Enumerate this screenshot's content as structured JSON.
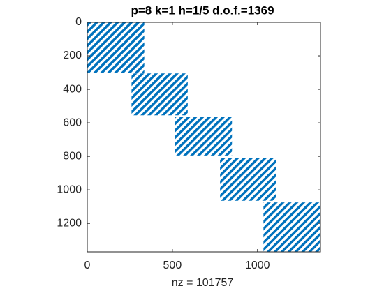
{
  "chart_data": {
    "type": "spy",
    "title": "p=8 k=1 h=1/5 d.o.f.=1369",
    "xlabel": "nz = 101757",
    "color": "#0072bd",
    "xlim": [
      0,
      1370
    ],
    "ylim": [
      0,
      1370
    ],
    "xticks": [
      0,
      500,
      1000
    ],
    "yticks": [
      0,
      200,
      400,
      600,
      800,
      1000,
      1200
    ],
    "blocks": [
      {
        "rows": [
          0,
          300
        ],
        "cols": [
          0,
          335
        ]
      },
      {
        "rows": [
          305,
          555
        ],
        "cols": [
          260,
          590
        ]
      },
      {
        "rows": [
          565,
          795
        ],
        "cols": [
          515,
          850
        ]
      },
      {
        "rows": [
          810,
          1065
        ],
        "cols": [
          780,
          1110
        ]
      },
      {
        "rows": [
          1075,
          1369
        ],
        "cols": [
          1035,
          1369
        ]
      }
    ]
  }
}
